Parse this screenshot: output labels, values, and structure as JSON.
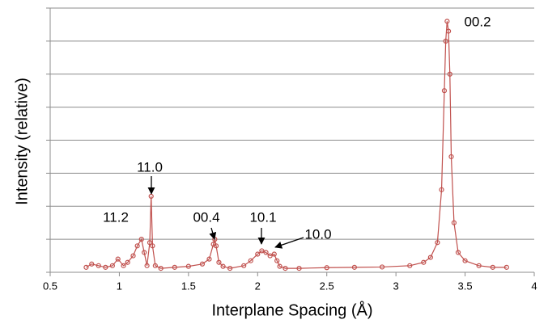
{
  "chart_data": {
    "type": "scatter",
    "line": true,
    "color": "#c0504d",
    "x_label": "Interplane Spacing (Å)",
    "y_label": "Intensity (relative)",
    "x": [
      0.76,
      0.8,
      0.85,
      0.9,
      0.95,
      0.99,
      1.03,
      1.06,
      1.1,
      1.13,
      1.16,
      1.18,
      1.2,
      1.22,
      1.23,
      1.24,
      1.26,
      1.3,
      1.4,
      1.5,
      1.6,
      1.65,
      1.68,
      1.69,
      1.7,
      1.72,
      1.75,
      1.8,
      1.9,
      1.95,
      2.0,
      2.03,
      2.06,
      2.09,
      2.12,
      2.14,
      2.16,
      2.2,
      2.3,
      2.5,
      2.7,
      2.9,
      3.1,
      3.2,
      3.25,
      3.3,
      3.33,
      3.35,
      3.36,
      3.37,
      3.38,
      3.39,
      3.4,
      3.42,
      3.45,
      3.5,
      3.6,
      3.7,
      3.8
    ],
    "values": [
      0.15,
      0.25,
      0.2,
      0.15,
      0.2,
      0.4,
      0.2,
      0.3,
      0.5,
      0.8,
      1.0,
      0.6,
      0.2,
      0.9,
      2.3,
      0.8,
      0.2,
      0.12,
      0.15,
      0.18,
      0.25,
      0.4,
      0.85,
      1.0,
      0.8,
      0.3,
      0.18,
      0.12,
      0.2,
      0.35,
      0.55,
      0.65,
      0.6,
      0.5,
      0.55,
      0.35,
      0.18,
      0.12,
      0.12,
      0.14,
      0.15,
      0.16,
      0.2,
      0.3,
      0.45,
      0.9,
      2.5,
      5.5,
      7.0,
      7.6,
      7.3,
      6.0,
      3.5,
      1.5,
      0.6,
      0.35,
      0.2,
      0.15,
      0.15
    ],
    "xlim": [
      0.5,
      4
    ],
    "xticks": [
      0.5,
      1,
      1.5,
      2,
      2.5,
      3,
      3.5,
      4
    ],
    "ylim": [
      0,
      8
    ],
    "yticks": [
      0,
      1,
      2,
      3,
      4,
      5,
      6,
      7,
      8
    ],
    "grid": true,
    "annotations": [
      "11.2",
      "11.0",
      "00.4",
      "10.1",
      "10.0",
      "00.2"
    ]
  }
}
